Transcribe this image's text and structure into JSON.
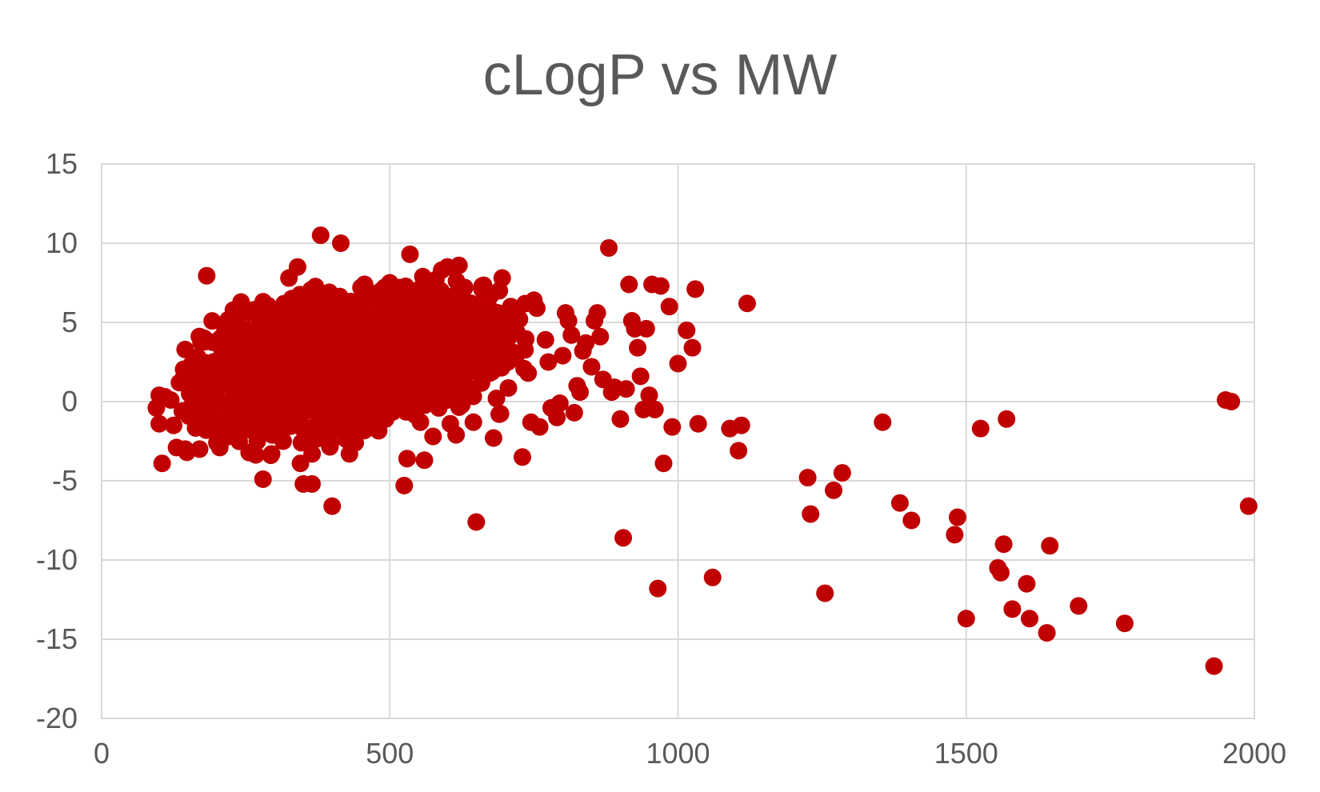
{
  "chart_data": {
    "type": "scatter",
    "title": "cLogP vs MW",
    "xlabel": "",
    "ylabel": "",
    "xlim": [
      0,
      2000
    ],
    "ylim": [
      -20,
      15
    ],
    "x_ticks": [
      0,
      500,
      1000,
      1500,
      2000
    ],
    "y_ticks": [
      -20,
      -15,
      -10,
      -5,
      0,
      5,
      10,
      15
    ],
    "grid": true,
    "legend": "none",
    "marker_color": "#C00000",
    "series": [
      {
        "points": [
          [
            95,
            -0.4
          ],
          [
            100,
            0.4
          ],
          [
            100,
            -1.4
          ],
          [
            105,
            -3.9
          ],
          [
            110,
            0.3
          ],
          [
            120,
            0.1
          ],
          [
            125,
            -1.5
          ],
          [
            130,
            -2.9
          ],
          [
            135,
            1.2
          ],
          [
            140,
            -0.6
          ],
          [
            145,
            -3.0
          ],
          [
            150,
            1.8
          ],
          [
            155,
            2.3
          ],
          [
            160,
            -0.8
          ],
          [
            165,
            2.8
          ],
          [
            170,
            -3.0
          ],
          [
            175,
            2.5
          ],
          [
            180,
            1.9
          ],
          [
            185,
            0.9
          ],
          [
            190,
            -1.2
          ],
          [
            195,
            1.4
          ],
          [
            200,
            -2.6
          ],
          [
            205,
            -2.9
          ],
          [
            210,
            3.4
          ],
          [
            215,
            2.1
          ],
          [
            220,
            4.3
          ],
          [
            225,
            3.0
          ],
          [
            230,
            -0.5
          ],
          [
            235,
            1.7
          ],
          [
            240,
            2.6
          ],
          [
            245,
            4.0
          ],
          [
            250,
            -1.1
          ],
          [
            255,
            3.2
          ],
          [
            260,
            2.2
          ],
          [
            265,
            5.8
          ],
          [
            270,
            -2.5
          ],
          [
            275,
            4.4
          ],
          [
            280,
            -4.9
          ],
          [
            285,
            5.6
          ],
          [
            290,
            5.9
          ],
          [
            295,
            -3.3
          ],
          [
            300,
            3.7
          ],
          [
            305,
            1.8
          ],
          [
            310,
            4.9
          ],
          [
            315,
            -2.5
          ],
          [
            320,
            2.5
          ],
          [
            325,
            7.8
          ],
          [
            330,
            6.5
          ],
          [
            335,
            1.0
          ],
          [
            340,
            8.5
          ],
          [
            345,
            -3.9
          ],
          [
            350,
            -5.2
          ],
          [
            355,
            3.6
          ],
          [
            360,
            6.7
          ],
          [
            365,
            -5.2
          ],
          [
            370,
            -2.1
          ],
          [
            375,
            5.9
          ],
          [
            380,
            10.5
          ],
          [
            385,
            -1.2
          ],
          [
            390,
            6.3
          ],
          [
            395,
            6.9
          ],
          [
            400,
            -6.6
          ],
          [
            405,
            3.1
          ],
          [
            410,
            -0.9
          ],
          [
            415,
            10.0
          ],
          [
            420,
            6.0
          ],
          [
            425,
            -2.4
          ],
          [
            430,
            -3.3
          ],
          [
            435,
            4.4
          ],
          [
            440,
            -2.6
          ],
          [
            445,
            6.2
          ],
          [
            450,
            7.2
          ],
          [
            455,
            1.7
          ],
          [
            460,
            6.9
          ],
          [
            465,
            -1.4
          ],
          [
            470,
            6.7
          ],
          [
            475,
            4.8
          ],
          [
            480,
            3.1
          ],
          [
            485,
            7.0
          ],
          [
            490,
            2.5
          ],
          [
            495,
            5.3
          ],
          [
            500,
            7.5
          ],
          [
            505,
            7.1
          ],
          [
            510,
            3.6
          ],
          [
            515,
            6.3
          ],
          [
            520,
            -0.1
          ],
          [
            525,
            -5.3
          ],
          [
            530,
            -3.6
          ],
          [
            535,
            9.3
          ],
          [
            540,
            6.8
          ],
          [
            545,
            0.0
          ],
          [
            550,
            4.8
          ],
          [
            555,
            7.2
          ],
          [
            560,
            -3.7
          ],
          [
            565,
            1.3
          ],
          [
            570,
            6.4
          ],
          [
            575,
            -2.2
          ],
          [
            580,
            7.7
          ],
          [
            585,
            -0.4
          ],
          [
            590,
            8.3
          ],
          [
            595,
            1.5
          ],
          [
            600,
            8.5
          ],
          [
            605,
            -1.4
          ],
          [
            610,
            5.7
          ],
          [
            615,
            -2.1
          ],
          [
            620,
            8.6
          ],
          [
            625,
            -0.2
          ],
          [
            630,
            7.2
          ],
          [
            635,
            0.9
          ],
          [
            640,
            6.2
          ],
          [
            645,
            -1.3
          ],
          [
            650,
            -7.6
          ],
          [
            655,
            5.2
          ],
          [
            660,
            7.1
          ],
          [
            665,
            1.8
          ],
          [
            670,
            4.7
          ],
          [
            675,
            6.7
          ],
          [
            680,
            -2.3
          ],
          [
            685,
            0.2
          ],
          [
            690,
            7.0
          ],
          [
            695,
            7.8
          ],
          [
            700,
            4.2
          ],
          [
            705,
            2.5
          ],
          [
            710,
            6.0
          ],
          [
            715,
            3.1
          ],
          [
            720,
            4.4
          ],
          [
            725,
            5.2
          ],
          [
            730,
            -3.5
          ],
          [
            735,
            3.9
          ],
          [
            740,
            1.8
          ],
          [
            745,
            -1.3
          ],
          [
            750,
            6.4
          ],
          [
            755,
            5.9
          ],
          [
            760,
            -1.6
          ],
          [
            770,
            3.9
          ],
          [
            775,
            2.5
          ],
          [
            780,
            -0.4
          ],
          [
            790,
            -1.0
          ],
          [
            795,
            -0.1
          ],
          [
            800,
            2.9
          ],
          [
            805,
            5.6
          ],
          [
            810,
            5.1
          ],
          [
            815,
            4.2
          ],
          [
            820,
            -0.7
          ],
          [
            825,
            1.0
          ],
          [
            830,
            0.6
          ],
          [
            835,
            3.2
          ],
          [
            840,
            3.7
          ],
          [
            850,
            2.2
          ],
          [
            855,
            5.1
          ],
          [
            860,
            5.6
          ],
          [
            865,
            4.1
          ],
          [
            870,
            1.4
          ],
          [
            880,
            9.7
          ],
          [
            885,
            0.6
          ],
          [
            890,
            0.9
          ],
          [
            900,
            -1.1
          ],
          [
            905,
            -8.6
          ],
          [
            910,
            0.8
          ],
          [
            915,
            7.4
          ],
          [
            920,
            5.1
          ],
          [
            925,
            4.6
          ],
          [
            930,
            3.4
          ],
          [
            935,
            1.6
          ],
          [
            940,
            -0.5
          ],
          [
            945,
            4.6
          ],
          [
            950,
            0.4
          ],
          [
            955,
            7.4
          ],
          [
            960,
            -0.5
          ],
          [
            965,
            -11.8
          ],
          [
            970,
            7.3
          ],
          [
            975,
            -3.9
          ],
          [
            985,
            6.0
          ],
          [
            990,
            -1.6
          ],
          [
            1000,
            2.4
          ],
          [
            1015,
            4.5
          ],
          [
            1025,
            3.4
          ],
          [
            1030,
            7.1
          ],
          [
            1035,
            -1.4
          ],
          [
            1060,
            -11.1
          ],
          [
            1090,
            -1.7
          ],
          [
            1105,
            -3.1
          ],
          [
            1110,
            -1.5
          ],
          [
            1120,
            6.2
          ],
          [
            1225,
            -4.8
          ],
          [
            1230,
            -7.1
          ],
          [
            1255,
            -12.1
          ],
          [
            1270,
            -5.6
          ],
          [
            1285,
            -4.5
          ],
          [
            1355,
            -1.3
          ],
          [
            1385,
            -6.4
          ],
          [
            1405,
            -7.5
          ],
          [
            1480,
            -8.4
          ],
          [
            1485,
            -7.3
          ],
          [
            1500,
            -13.7
          ],
          [
            1525,
            -1.7
          ],
          [
            1555,
            -10.5
          ],
          [
            1560,
            -10.8
          ],
          [
            1565,
            -9.0
          ],
          [
            1570,
            -1.1
          ],
          [
            1580,
            -13.1
          ],
          [
            1605,
            -11.5
          ],
          [
            1610,
            -13.7
          ],
          [
            1640,
            -14.6
          ],
          [
            1645,
            -9.1
          ],
          [
            1695,
            -12.9
          ],
          [
            1775,
            -14.0
          ],
          [
            1930,
            -16.7
          ],
          [
            1950,
            0.1
          ],
          [
            1960,
            -0.0
          ],
          [
            1990,
            -6.6
          ]
        ]
      }
    ]
  }
}
